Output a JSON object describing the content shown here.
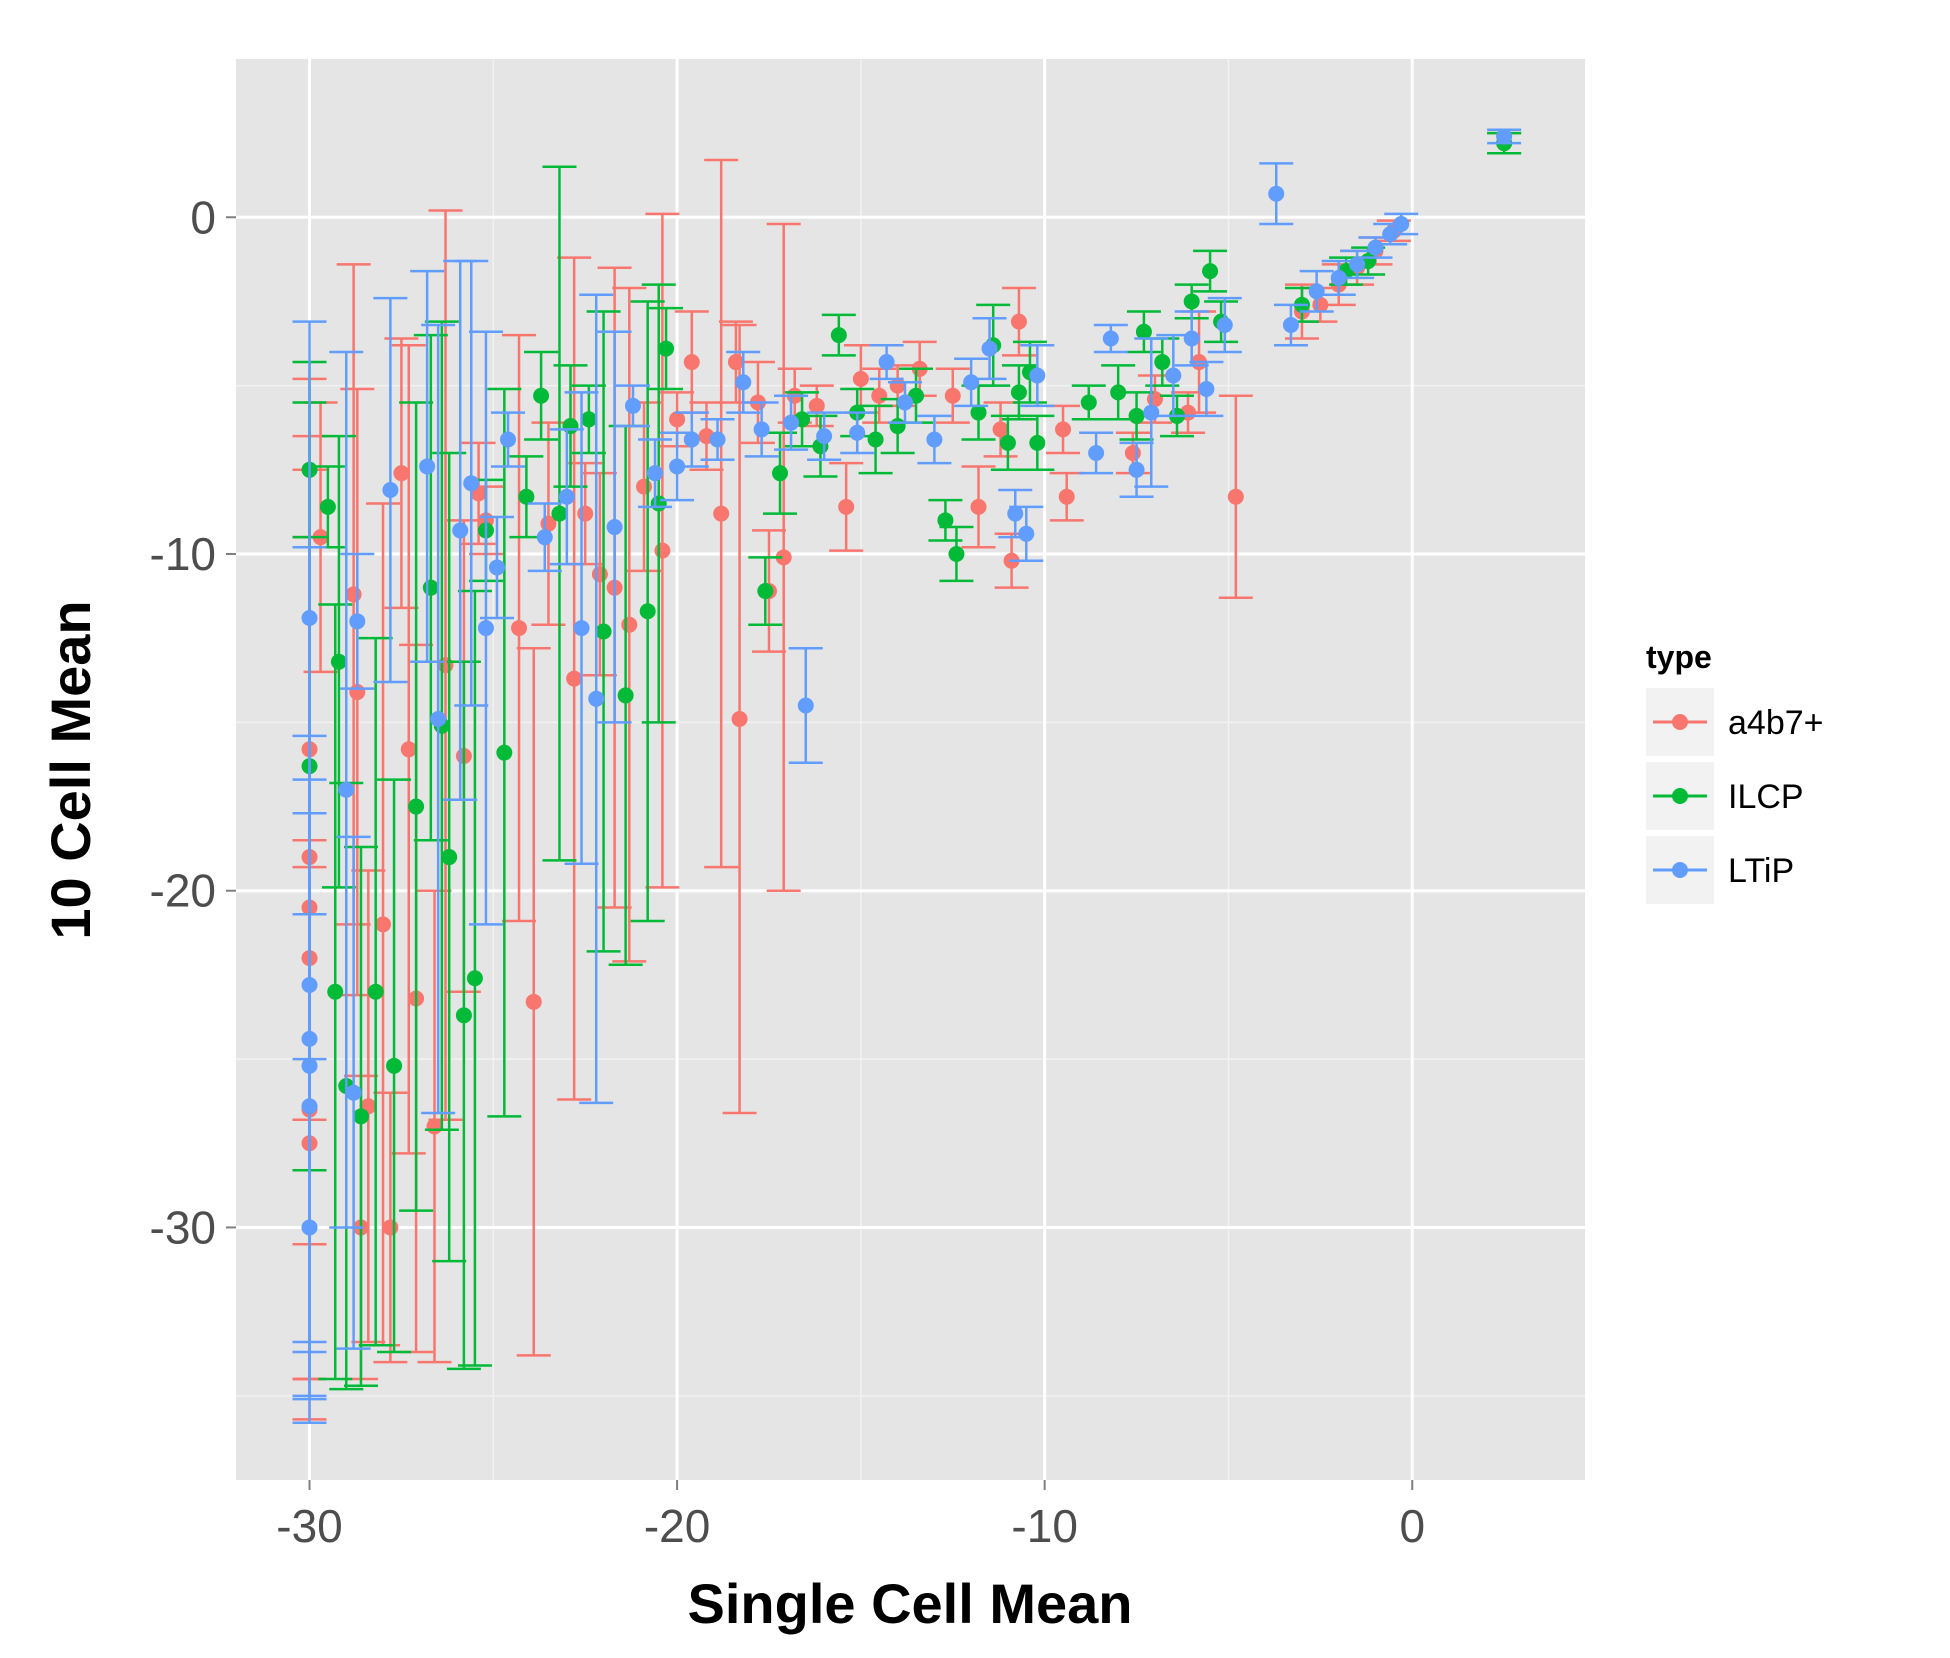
{
  "chart_data": {
    "type": "scatter",
    "xlabel": "Single Cell Mean",
    "ylabel": "10 Cell Mean",
    "xlim": [
      -32,
      4.7
    ],
    "ylim": [
      -37.5,
      4.7
    ],
    "x_ticks": [
      -30,
      -20,
      -10,
      0
    ],
    "y_ticks": [
      0,
      -10,
      -20,
      -30
    ],
    "x_tick_labels": [
      "-30",
      "-20",
      "-10",
      "0"
    ],
    "y_tick_labels": [
      "0",
      "-10",
      "-20",
      "-30"
    ],
    "grid": true,
    "legend": {
      "title": "type",
      "placement": "right"
    },
    "series": [
      {
        "name": "a4b7+",
        "color": "#F8766D",
        "points": [
          [
            -30,
            -27.5,
            8.2
          ],
          [
            -30,
            -26.5,
            8.0
          ],
          [
            -30,
            -20.5,
            14.0
          ],
          [
            -30,
            -22,
            12.5
          ],
          [
            -30,
            -19,
            11.5
          ],
          [
            -30,
            -15.8,
            11.0
          ],
          [
            -29.7,
            -9.5,
            4.0
          ],
          [
            -28.8,
            -11.2,
            9.8
          ],
          [
            -28.7,
            -14.1,
            9.0
          ],
          [
            -28.6,
            -30,
            4.5
          ],
          [
            -28.4,
            -26.4,
            7.0
          ],
          [
            -28,
            -21,
            12.5
          ],
          [
            -27.8,
            -30,
            4.0
          ],
          [
            -27.5,
            -7.6,
            4.0
          ],
          [
            -27.3,
            -15.8,
            12.0
          ],
          [
            -27.1,
            -23.2,
            10.5
          ],
          [
            -26.6,
            -27,
            7.0
          ],
          [
            -26.3,
            -13.3,
            13.5
          ],
          [
            -25.8,
            -16,
            7.0
          ],
          [
            -25.4,
            -8.2,
            1.5
          ],
          [
            -25.2,
            -9,
            1.0
          ],
          [
            -24.3,
            -12.2,
            8.7
          ],
          [
            -23.9,
            -23.3,
            10.5
          ],
          [
            -23.5,
            -9.1,
            3.0
          ],
          [
            -22.8,
            -13.7,
            12.5
          ],
          [
            -22.5,
            -8.8,
            1.5
          ],
          [
            -22.1,
            -10.6,
            3.0
          ],
          [
            -21.7,
            -11,
            9.5
          ],
          [
            -21.3,
            -12.1,
            10.0
          ],
          [
            -20.9,
            -8.0,
            2.5
          ],
          [
            -20.4,
            -9.9,
            10.0
          ],
          [
            -20,
            -6,
            0.8
          ],
          [
            -19.6,
            -4.3,
            1.5
          ],
          [
            -19.2,
            -6.5,
            1.0
          ],
          [
            -18.8,
            -8.8,
            10.5
          ],
          [
            -18.4,
            -4.3,
            1.2
          ],
          [
            -18.3,
            -14.9,
            11.7
          ],
          [
            -17.8,
            -5.5,
            1.2
          ],
          [
            -17.5,
            -11.1,
            1.8
          ],
          [
            -17.1,
            -10.1,
            9.9
          ],
          [
            -16.8,
            -5.3,
            0.8
          ],
          [
            -16.2,
            -5.6,
            0.6
          ],
          [
            -15.4,
            -8.6,
            1.3
          ],
          [
            -15.0,
            -4.8,
            1.0
          ],
          [
            -14.5,
            -5.3,
            0.8
          ],
          [
            -14.0,
            -5,
            0.6
          ],
          [
            -13.4,
            -4.5,
            0.8
          ],
          [
            -12.5,
            -5.3,
            0.8
          ],
          [
            -11.8,
            -8.6,
            1.2
          ],
          [
            -11.2,
            -6.3,
            0.8
          ],
          [
            -10.9,
            -10.2,
            0.8
          ],
          [
            -10.7,
            -3.1,
            1.0
          ],
          [
            -9.5,
            -6.3,
            0.7
          ],
          [
            -9.4,
            -8.3,
            0.7
          ],
          [
            -7.6,
            -7,
            0.6
          ],
          [
            -7.0,
            -5.4,
            0.7
          ],
          [
            -6.1,
            -5.8,
            0.6
          ],
          [
            -5.8,
            -4.3,
            1.5
          ],
          [
            -4.8,
            -8.3,
            3.0
          ],
          [
            -3.0,
            -2.8,
            0.8
          ],
          [
            -2.5,
            -2.6,
            0.5
          ],
          [
            -2.0,
            -2.0,
            0.6
          ],
          [
            -1.5,
            -1.5,
            0.5
          ],
          [
            -1.0,
            -1,
            0.4
          ],
          [
            -0.5,
            -0.4,
            0.3
          ],
          [
            2.5,
            2.2,
            0.3
          ]
        ]
      },
      {
        "name": "ILCP",
        "color": "#00BA38",
        "points": [
          [
            -30,
            -7.5,
            2.0
          ],
          [
            -30,
            -16.3,
            12.0
          ],
          [
            -29.5,
            -8.6,
            1.2
          ],
          [
            -29.3,
            -23,
            11.5
          ],
          [
            -29.2,
            -13.2,
            6.7
          ],
          [
            -29.0,
            -25.8,
            9.0
          ],
          [
            -28.6,
            -26.7,
            8.0
          ],
          [
            -28.2,
            -23,
            10.5
          ],
          [
            -27.7,
            -25.2,
            8.5
          ],
          [
            -27.1,
            -17.5,
            12.0
          ],
          [
            -26.7,
            -11,
            7.5
          ],
          [
            -26.4,
            -15.1,
            12.0
          ],
          [
            -26.2,
            -19,
            12.0
          ],
          [
            -25.8,
            -23.7,
            10.5
          ],
          [
            -25.5,
            -22.6,
            11.5
          ],
          [
            -25.2,
            -9.3,
            1.5
          ],
          [
            -24.7,
            -15.9,
            10.8
          ],
          [
            -24.1,
            -8.3,
            1.2
          ],
          [
            -23.7,
            -5.3,
            1.3
          ],
          [
            -23.2,
            -8.8,
            10.3
          ],
          [
            -22.9,
            -6.2,
            1.8
          ],
          [
            -22.4,
            -6,
            1.0
          ],
          [
            -22,
            -12.3,
            9.5
          ],
          [
            -21.4,
            -14.2,
            8.0
          ],
          [
            -20.8,
            -11.7,
            9.2
          ],
          [
            -20.5,
            -8.5,
            6.5
          ],
          [
            -20.3,
            -3.9,
            1.2
          ],
          [
            -17.6,
            -11.1,
            1.0
          ],
          [
            -17.2,
            -7.6,
            1.2
          ],
          [
            -16.6,
            -6.0,
            0.8
          ],
          [
            -16.1,
            -6.8,
            0.9
          ],
          [
            -15.6,
            -3.5,
            0.6
          ],
          [
            -15.1,
            -5.8,
            0.7
          ],
          [
            -14.6,
            -6.6,
            1.0
          ],
          [
            -14.0,
            -6.2,
            0.8
          ],
          [
            -13.5,
            -5.3,
            0.8
          ],
          [
            -12.7,
            -9,
            0.6
          ],
          [
            -12.4,
            -10,
            0.8
          ],
          [
            -11.8,
            -5.8,
            0.8
          ],
          [
            -11.4,
            -3.8,
            1.2
          ],
          [
            -11.0,
            -6.7,
            0.8
          ],
          [
            -10.7,
            -5.2,
            0.8
          ],
          [
            -10.4,
            -4.6,
            0.9
          ],
          [
            -10.2,
            -6.7,
            0.8
          ],
          [
            -8.8,
            -5.5,
            0.5
          ],
          [
            -8.0,
            -5.2,
            0.8
          ],
          [
            -7.5,
            -5.9,
            0.7
          ],
          [
            -7.3,
            -3.4,
            0.6
          ],
          [
            -6.8,
            -4.3,
            0.7
          ],
          [
            -6.4,
            -5.9,
            0.6
          ],
          [
            -6.0,
            -2.5,
            0.5
          ],
          [
            -5.5,
            -1.6,
            0.6
          ],
          [
            -5.2,
            -3.1,
            0.6
          ],
          [
            -3.0,
            -2.6,
            0.5
          ],
          [
            -1.8,
            -1.6,
            0.4
          ],
          [
            -1.2,
            -1.3,
            0.4
          ],
          [
            2.5,
            2.2,
            0.3
          ]
        ]
      },
      {
        "name": "LTiP",
        "color": "#619CFF",
        "points": [
          [
            -30,
            -11.9,
            8.8
          ],
          [
            -30,
            -30,
            5.0
          ],
          [
            -30,
            -25.2,
            8.5
          ],
          [
            -30,
            -26.4,
            8.7
          ],
          [
            -30,
            -24.4,
            9.0
          ],
          [
            -30,
            -22.8,
            13.0
          ],
          [
            -29.0,
            -17,
            13.0
          ],
          [
            -28.8,
            -26,
            7.6
          ],
          [
            -28.7,
            -12,
            2.0
          ],
          [
            -27.8,
            -8.1,
            5.7
          ],
          [
            -26.8,
            -7.4,
            5.8
          ],
          [
            -26.5,
            -14.9,
            11.7
          ],
          [
            -25.9,
            -9.3,
            8.0
          ],
          [
            -25.6,
            -7.9,
            6.6
          ],
          [
            -25.2,
            -12.2,
            8.8
          ],
          [
            -24.9,
            -10.4,
            1.5
          ],
          [
            -24.6,
            -6.6,
            0.8
          ],
          [
            -23.6,
            -9.5,
            1.0
          ],
          [
            -23.0,
            -8.3,
            2.0
          ],
          [
            -22.6,
            -12.2,
            7.0
          ],
          [
            -22.2,
            -14.3,
            12.0
          ],
          [
            -21.7,
            -9.2,
            5.8
          ],
          [
            -21.2,
            -5.6,
            0.6
          ],
          [
            -20.6,
            -7.6,
            1.0
          ],
          [
            -20.0,
            -7.4,
            1.0
          ],
          [
            -19.6,
            -6.6,
            0.8
          ],
          [
            -18.9,
            -6.6,
            0.6
          ],
          [
            -18.2,
            -4.9,
            0.9
          ],
          [
            -17.7,
            -6.3,
            0.8
          ],
          [
            -16.9,
            -6.1,
            0.8
          ],
          [
            -16.5,
            -14.5,
            1.7
          ],
          [
            -16.0,
            -6.5,
            0.7
          ],
          [
            -15.1,
            -6.4,
            0.6
          ],
          [
            -14.3,
            -4.3,
            0.5
          ],
          [
            -13.8,
            -5.5,
            0.6
          ],
          [
            -13.0,
            -6.6,
            0.7
          ],
          [
            -12.0,
            -4.9,
            0.7
          ],
          [
            -11.5,
            -3.9,
            0.9
          ],
          [
            -10.8,
            -8.8,
            0.7
          ],
          [
            -10.5,
            -9.4,
            0.8
          ],
          [
            -10.2,
            -4.7,
            0.9
          ],
          [
            -8.6,
            -7.0,
            0.6
          ],
          [
            -8.2,
            -3.6,
            0.4
          ],
          [
            -7.5,
            -7.5,
            0.8
          ],
          [
            -7.1,
            -5.8,
            2.2
          ],
          [
            -6.5,
            -4.7,
            1.2
          ],
          [
            -6.0,
            -3.6,
            0.8
          ],
          [
            -5.6,
            -5.1,
            0.8
          ],
          [
            -5.1,
            -3.2,
            0.8
          ],
          [
            -3.7,
            0.7,
            0.9
          ],
          [
            -3.3,
            -3.2,
            0.6
          ],
          [
            -2.6,
            -2.2,
            0.6
          ],
          [
            -2.0,
            -1.8,
            0.5
          ],
          [
            -1.5,
            -1.4,
            0.4
          ],
          [
            -1.0,
            -0.9,
            0.3
          ],
          [
            -0.6,
            -0.5,
            0.3
          ],
          [
            -0.3,
            -0.2,
            0.3
          ],
          [
            2.5,
            2.4,
            0.2
          ]
        ]
      }
    ]
  }
}
